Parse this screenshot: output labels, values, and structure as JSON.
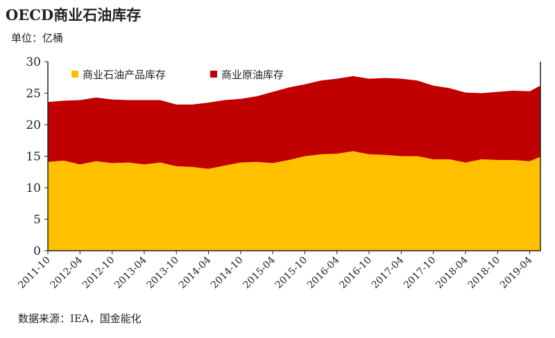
{
  "title": "OECD商业石油库存",
  "unit": "单位：亿桶",
  "source": "数据来源：IEA，国金能化",
  "chart_data": {
    "type": "area",
    "stacked": true,
    "ylim": [
      0,
      30
    ],
    "yticks": [
      0,
      5,
      10,
      15,
      20,
      25,
      30
    ],
    "xtick_labels": [
      "2011-10",
      "2012-04",
      "2012-10",
      "2013-04",
      "2013-10",
      "2014-04",
      "2014-10",
      "2015-04",
      "2015-10",
      "2016-04",
      "2016-10",
      "2017-04",
      "2017-10",
      "2018-04",
      "2018-10",
      "2019-04"
    ],
    "x": [
      "2011-10",
      "2012-01",
      "2012-04",
      "2012-07",
      "2012-10",
      "2013-01",
      "2013-04",
      "2013-07",
      "2013-10",
      "2014-01",
      "2014-04",
      "2014-07",
      "2014-10",
      "2015-01",
      "2015-04",
      "2015-07",
      "2015-10",
      "2016-01",
      "2016-04",
      "2016-07",
      "2016-10",
      "2017-01",
      "2017-04",
      "2017-07",
      "2017-10",
      "2018-01",
      "2018-04",
      "2018-07",
      "2018-10",
      "2019-01",
      "2019-04",
      "2019-06"
    ],
    "legend": "top-left",
    "series": [
      {
        "name": "商业石油产品库存",
        "color": "#FFC000",
        "values": [
          14.1,
          14.3,
          13.7,
          14.2,
          13.9,
          14.0,
          13.7,
          14.0,
          13.4,
          13.3,
          13.0,
          13.5,
          14.0,
          14.1,
          13.9,
          14.4,
          15.0,
          15.3,
          15.4,
          15.8,
          15.3,
          15.2,
          15.0,
          15.0,
          14.5,
          14.5,
          14.0,
          14.5,
          14.4,
          14.4,
          14.2,
          14.9
        ]
      },
      {
        "name": "商业原油库存",
        "color": "#C00000",
        "values": [
          9.5,
          9.5,
          10.2,
          10.1,
          10.1,
          9.9,
          10.2,
          9.9,
          9.8,
          9.9,
          10.5,
          10.4,
          10.1,
          10.4,
          11.3,
          11.5,
          11.4,
          11.7,
          11.9,
          11.9,
          12.0,
          12.2,
          12.3,
          12.0,
          11.7,
          11.3,
          11.1,
          10.5,
          10.8,
          11.0,
          11.1,
          11.3
        ]
      }
    ]
  }
}
